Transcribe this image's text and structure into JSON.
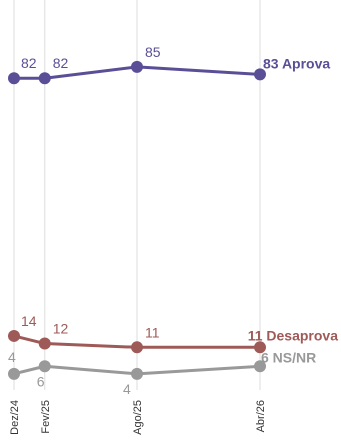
{
  "chart_data": {
    "type": "line",
    "categories": [
      "Dez/24",
      "Fev/25",
      "Ago/25",
      "Abr/26"
    ],
    "x_dates": [
      "2024-12",
      "2025-02",
      "2025-08",
      "2026-04"
    ],
    "ylim": [
      0,
      100
    ],
    "grid": "vertical",
    "legend": "inline-end-labels",
    "series": [
      {
        "name": "Aprova",
        "values": [
          82,
          82,
          85,
          83
        ],
        "color": "#5a4f96",
        "end_label": "83 Aprova",
        "label_pos": [
          "above",
          "above",
          "above",
          "end"
        ]
      },
      {
        "name": "Desaprova",
        "values": [
          14,
          12,
          11,
          11
        ],
        "color": "#9e5a57",
        "end_label": "11 Desaprova",
        "label_pos": [
          "above",
          "above",
          "above",
          "end"
        ]
      },
      {
        "name": "NS/NR",
        "values": [
          4,
          6,
          4,
          6
        ],
        "color": "#999999",
        "end_label": "6 NS/NR",
        "label_pos": [
          "above",
          "below",
          "below",
          "end"
        ]
      }
    ]
  }
}
